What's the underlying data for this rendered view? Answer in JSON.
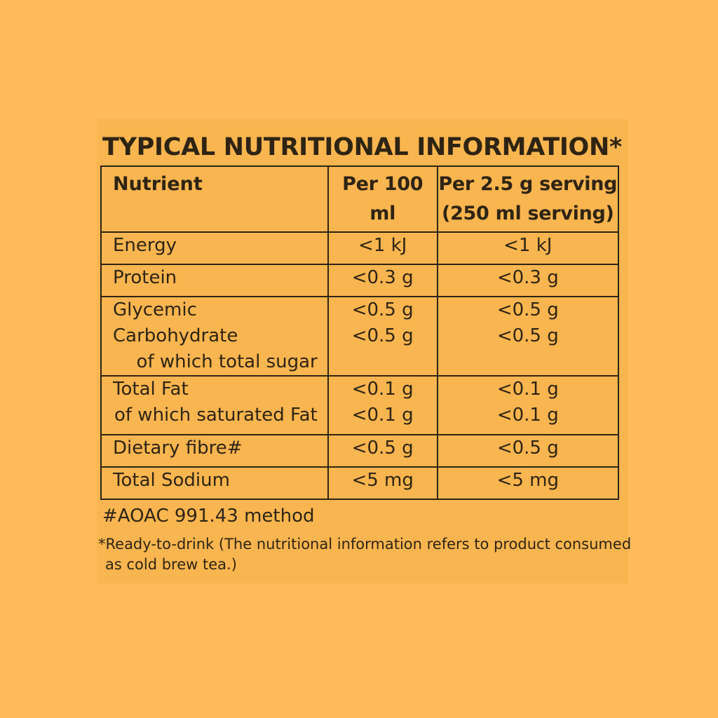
{
  "title": "TYPICAL NUTRITIONAL INFORMATION*",
  "table": {
    "headers": {
      "nutrient": "Nutrient",
      "per_100": "Per 100 ml",
      "per_serving_line1": "Per 2.5 g serving",
      "per_serving_line2": "(250 ml serving)"
    },
    "rows": [
      {
        "label": "Energy",
        "per_100": "<1 kJ",
        "per_serving": "<1 kJ"
      },
      {
        "label": "Protein",
        "per_100": "<0.3 g",
        "per_serving": "<0.3 g"
      },
      {
        "label": "Glycemic Carbohydrate",
        "per_100": "<0.5 g",
        "per_serving": "<0.5 g",
        "sub_label": "of which total sugar",
        "sub_per_100": "<0.5 g",
        "sub_per_serving": "<0.5 g"
      },
      {
        "label": "Total Fat",
        "per_100": "<0.1 g",
        "per_serving": "<0.1 g",
        "sub_label": "of which saturated Fat",
        "sub_per_100": "<0.1 g",
        "sub_per_serving": "<0.1 g"
      },
      {
        "label": "Dietary fibre#",
        "per_100": "<0.5 g",
        "per_serving": "<0.5 g"
      },
      {
        "label": "Total Sodium",
        "per_100": "<5 mg",
        "per_serving": "<5 mg"
      }
    ]
  },
  "footnotes": {
    "method": "#AOAC 991.43 method",
    "ready_line1": "*Ready-to-drink (The nutritional information refers to product consumed",
    "ready_line2": "as cold brew tea.)"
  },
  "colors": {
    "background": "#FFBB5C",
    "panel": "#F9B54F",
    "text": "#2E2414"
  }
}
